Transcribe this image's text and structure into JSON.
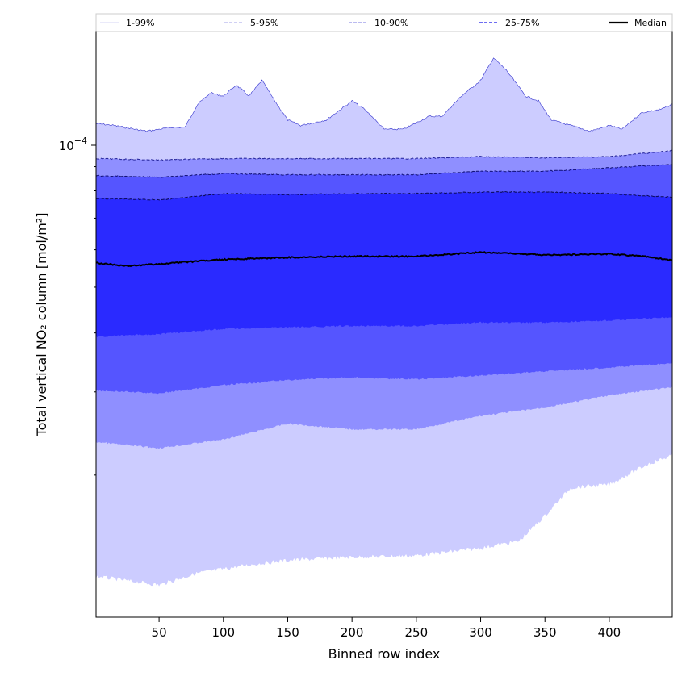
{
  "chart_data": {
    "type": "area",
    "title": "",
    "xlabel": "Binned row index",
    "ylabel": "Total vertical NO₂ column [mol/m²]",
    "xlim": [
      1,
      449
    ],
    "ylim": [
      1e-05,
      0.000174
    ],
    "yscale": "log",
    "xticks": [
      50,
      100,
      150,
      200,
      250,
      300,
      350,
      400
    ],
    "yticks": [
      {
        "base": "10",
        "exp": "−4",
        "value": 0.0001
      }
    ],
    "yminor": [
      2e-05,
      3e-05,
      4e-05,
      5e-05,
      6e-05,
      7e-05,
      8e-05,
      9e-05
    ],
    "grid": false,
    "legend": {
      "placement": "top",
      "items": [
        {
          "label": "1-99%",
          "color": "#d4d4f4",
          "style": "solid"
        },
        {
          "label": "5-95%",
          "color": "#a0a0e8",
          "style": "dashed"
        },
        {
          "label": "10-90%",
          "color": "#7777e0",
          "style": "dashed"
        },
        {
          "label": "25-75%",
          "color": "#5a5af0",
          "style": "dashed"
        },
        {
          "label": "Median",
          "color": "#000000",
          "style": "solid"
        }
      ]
    },
    "bands": [
      {
        "name": "1-99%",
        "fill": "#ccccff",
        "edge": "#3333cc",
        "upper": {
          "x": [
            1,
            15,
            40,
            60,
            70,
            80,
            90,
            100,
            110,
            120,
            130,
            140,
            150,
            160,
            180,
            200,
            210,
            225,
            240,
            260,
            270,
            285,
            300,
            310,
            320,
            335,
            345,
            355,
            370,
            385,
            400,
            410,
            425,
            440,
            449
          ],
          "y": [
            0.000111,
            0.00011,
            0.000107,
            0.000109,
            0.000109,
            0.000122,
            0.000129,
            0.000127,
            0.000134,
            0.000127,
            0.000137,
            0.000124,
            0.000113,
            0.00011,
            0.000113,
            0.000124,
            0.000119,
            0.000108,
            0.000108,
            0.000115,
            0.000115,
            0.000127,
            0.000137,
            0.000153,
            0.000144,
            0.000127,
            0.000124,
            0.000113,
            0.00011,
            0.000107,
            0.00011,
            0.000108,
            0.000117,
            0.000119,
            0.000122
          ]
        },
        "lower": {
          "x": [
            1,
            50,
            80,
            120,
            150,
            200,
            250,
            300,
            330,
            350,
            370,
            400,
            430,
            449
          ],
          "y": [
            1.22e-05,
            1.17e-05,
            1.24e-05,
            1.29e-05,
            1.32e-05,
            1.34e-05,
            1.35e-05,
            1.4e-05,
            1.45e-05,
            1.64e-05,
            1.88e-05,
            1.91e-05,
            2.11e-05,
            2.2e-05
          ]
        }
      },
      {
        "name": "5-95%",
        "fill": "#8f8fff",
        "edge": "#222299",
        "upper": {
          "x": [
            1,
            50,
            100,
            150,
            200,
            250,
            300,
            350,
            400,
            449
          ],
          "y": [
            9.36e-05,
            9.3e-05,
            9.36e-05,
            9.36e-05,
            9.36e-05,
            9.36e-05,
            9.45e-05,
            9.4e-05,
            9.45e-05,
            9.73e-05
          ]
        },
        "lower": {
          "x": [
            1,
            50,
            100,
            150,
            200,
            250,
            300,
            350,
            400,
            449
          ],
          "y": [
            2.35e-05,
            2.28e-05,
            2.38e-05,
            2.57e-05,
            2.5e-05,
            2.5e-05,
            2.67e-05,
            2.78e-05,
            2.95e-05,
            3.07e-05
          ]
        }
      },
      {
        "name": "10-90%",
        "fill": "#5555ff",
        "edge": "#111177",
        "upper": {
          "x": [
            1,
            50,
            100,
            150,
            200,
            250,
            300,
            350,
            400,
            449
          ],
          "y": [
            8.61e-05,
            8.55e-05,
            8.7e-05,
            8.65e-05,
            8.65e-05,
            8.65e-05,
            8.8e-05,
            8.8e-05,
            8.95e-05,
            9.1e-05
          ]
        },
        "lower": {
          "x": [
            1,
            50,
            100,
            150,
            200,
            250,
            300,
            350,
            400,
            449
          ],
          "y": [
            3.02e-05,
            2.98e-05,
            3.1e-05,
            3.18e-05,
            3.22e-05,
            3.19e-05,
            3.25e-05,
            3.32e-05,
            3.38e-05,
            3.45e-05
          ]
        }
      },
      {
        "name": "25-75%",
        "fill": "#2a2aff",
        "edge": "#0a0a55",
        "upper": {
          "x": [
            1,
            50,
            100,
            150,
            200,
            250,
            300,
            350,
            400,
            449
          ],
          "y": [
            7.71e-05,
            7.65e-05,
            7.89e-05,
            7.85e-05,
            7.89e-05,
            7.89e-05,
            7.95e-05,
            7.95e-05,
            7.89e-05,
            7.75e-05
          ]
        },
        "lower": {
          "x": [
            1,
            50,
            100,
            150,
            200,
            250,
            300,
            350,
            400,
            449
          ],
          "y": [
            3.93e-05,
            3.98e-05,
            4.08e-05,
            4.11e-05,
            4.14e-05,
            4.14e-05,
            4.21e-05,
            4.21e-05,
            4.25e-05,
            4.32e-05
          ]
        }
      }
    ],
    "median": {
      "name": "Median",
      "color": "#000000",
      "x": [
        1,
        25,
        50,
        100,
        150,
        200,
        250,
        300,
        350,
        400,
        425,
        449
      ],
      "y": [
        5.63e-05,
        5.54e-05,
        5.6e-05,
        5.72e-05,
        5.78e-05,
        5.81e-05,
        5.81e-05,
        5.93e-05,
        5.85e-05,
        5.88e-05,
        5.82e-05,
        5.7e-05
      ]
    }
  }
}
